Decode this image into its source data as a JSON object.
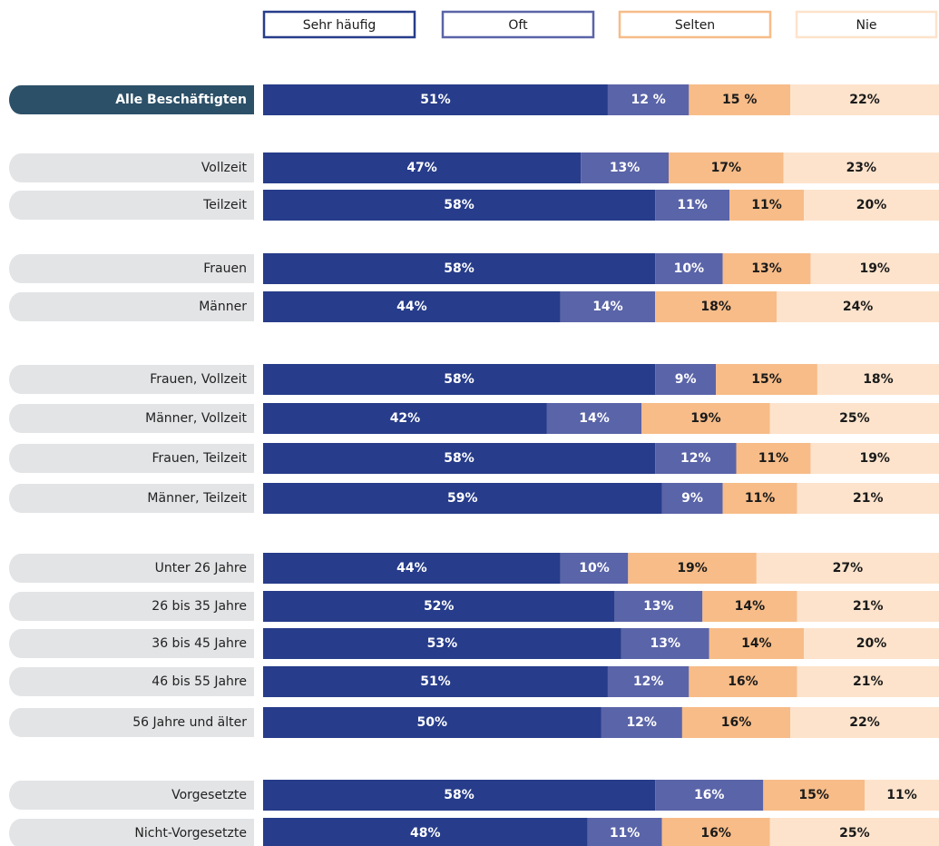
{
  "chart_data": {
    "type": "bar",
    "orientation": "horizontal",
    "stacked": true,
    "categories": [
      "Alle Beschäftigten",
      "Vollzeit",
      "Teilzeit",
      "Frauen",
      "Männer",
      "Frauen, Vollzeit",
      "Männer, Vollzeit",
      "Frauen, Teilzeit",
      "Männer, Teilzeit",
      "Unter 26 Jahre",
      "26 bis 35 Jahre",
      "36 bis 45 Jahre",
      "46 bis 55 Jahre",
      "56 Jahre und älter",
      "Vorgesetzte",
      "Nicht-Vorgesetzte"
    ],
    "xlim": [
      0,
      100
    ],
    "series": [
      {
        "name": "Sehr häufig",
        "color": "#273c8a",
        "values": [
          51,
          47,
          58,
          58,
          44,
          58,
          42,
          58,
          59,
          44,
          52,
          53,
          51,
          50,
          58,
          48
        ],
        "value_labels": [
          "51%",
          "47%",
          "58%",
          "58%",
          "44%",
          "58%",
          "42%",
          "58%",
          "59%",
          "44%",
          "52%",
          "53%",
          "51%",
          "50%",
          "58%",
          "48%"
        ]
      },
      {
        "name": "Oft",
        "color": "#5a64a8",
        "values": [
          12,
          13,
          11,
          10,
          14,
          9,
          14,
          12,
          9,
          10,
          13,
          13,
          12,
          12,
          16,
          11
        ],
        "value_labels": [
          "12 %",
          "13%",
          "11%",
          "10%",
          "14%",
          "9%",
          "14%",
          "12%",
          "9%",
          "10%",
          "13%",
          "13%",
          "12%",
          "12%",
          "16%",
          "11%"
        ]
      },
      {
        "name": "Selten",
        "color": "#f7bc88",
        "values": [
          15,
          17,
          11,
          13,
          18,
          15,
          19,
          11,
          11,
          19,
          14,
          14,
          16,
          16,
          15,
          16
        ],
        "value_labels": [
          "15 %",
          "17%",
          "11%",
          "13%",
          "18%",
          "15%",
          "19%",
          "11%",
          "11%",
          "19%",
          "14%",
          "14%",
          "16%",
          "16%",
          "15%",
          "16%"
        ]
      },
      {
        "name": "Nie",
        "color": "#fde3cc",
        "values": [
          22,
          23,
          20,
          19,
          24,
          18,
          25,
          19,
          21,
          27,
          21,
          20,
          21,
          22,
          11,
          25
        ],
        "value_labels": [
          "22%",
          "23%",
          "20%",
          "19%",
          "24%",
          "18%",
          "25%",
          "19%",
          "21%",
          "27%",
          "21%",
          "20%",
          "21%",
          "22%",
          "11%",
          "25%"
        ]
      }
    ]
  }
}
